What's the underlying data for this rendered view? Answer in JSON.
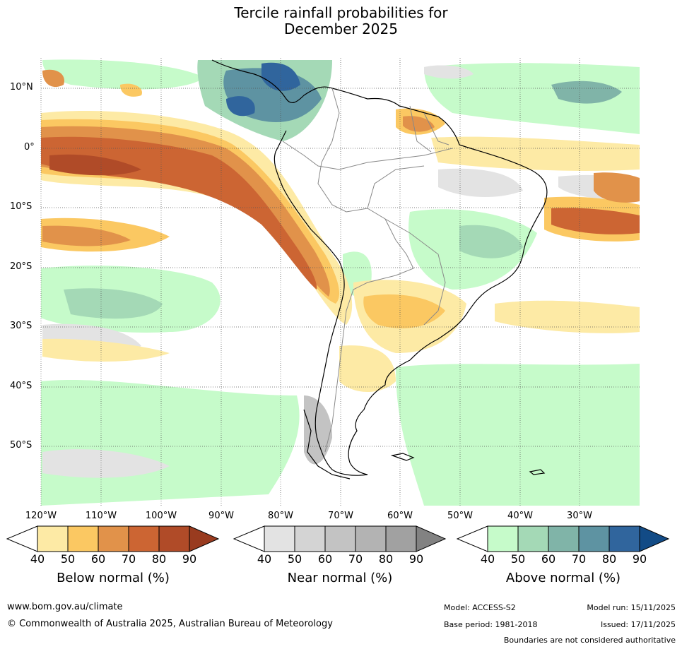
{
  "title": {
    "line1": "Tercile rainfall probabilities for",
    "line2": "December 2025"
  },
  "map": {
    "region": "South America and surrounding oceans",
    "lat_labels": [
      "10°N",
      "0°",
      "10°S",
      "20°S",
      "30°S",
      "40°S",
      "50°S"
    ],
    "lon_labels": [
      "120°W",
      "110°W",
      "100°W",
      "90°W",
      "80°W",
      "70°W",
      "60°W",
      "50°W",
      "40°W",
      "30°W"
    ]
  },
  "legends": [
    {
      "title": "Below normal (%)",
      "ticks": [
        "40",
        "50",
        "60",
        "70",
        "80",
        "90"
      ],
      "colors": [
        "#fdeaa5",
        "#fbc862",
        "#e1924a",
        "#cc6533",
        "#b04b28",
        "#993b1f"
      ]
    },
    {
      "title": "Near normal (%)",
      "ticks": [
        "40",
        "50",
        "60",
        "70",
        "80",
        "90"
      ],
      "colors": [
        "#e3e3e3",
        "#d4d4d4",
        "#c3c3c3",
        "#b3b3b3",
        "#a1a1a1",
        "#828282"
      ]
    },
    {
      "title": "Above normal (%)",
      "ticks": [
        "40",
        "50",
        "60",
        "70",
        "80",
        "90"
      ],
      "colors": [
        "#c6fbca",
        "#a4d9b6",
        "#80b4a8",
        "#5e93a2",
        "#30659d",
        "#124b86"
      ]
    }
  ],
  "footer": {
    "website": "www.bom.gov.au/climate",
    "copyright": "© Commonwealth of Australia 2025, Australian Bureau of Meteorology",
    "model": "Model: ACCESS-S2",
    "base_period": "Base period: 1981-2018",
    "model_run": "Model run: 15/11/2025",
    "issued": "Issued: 17/11/2025",
    "disclaimer": "Boundaries are not considered authoritative"
  }
}
